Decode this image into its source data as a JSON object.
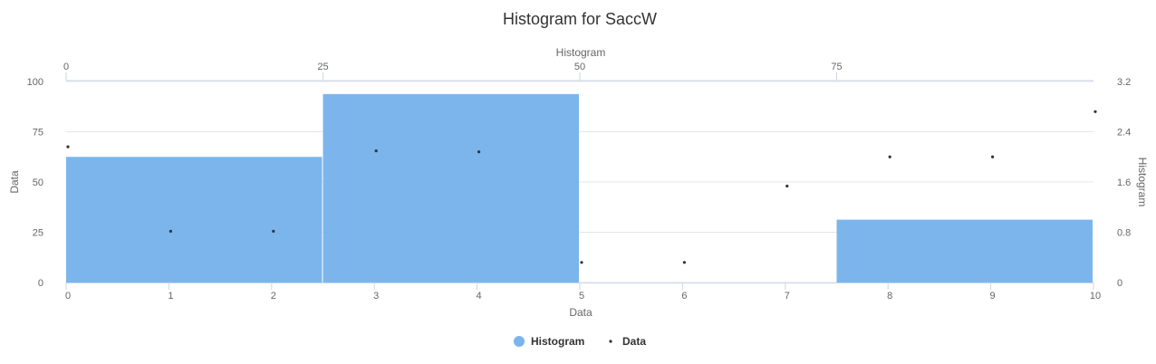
{
  "chart_data": {
    "type": "bar",
    "title": "Histogram for SaccW",
    "legend": {
      "placement": "bottom-center",
      "items": [
        {
          "name": "Histogram",
          "color": "#7cb5ec",
          "symbol": "circle"
        },
        {
          "name": "Data",
          "color": "#333333",
          "symbol": "dot"
        }
      ]
    },
    "axes": {
      "x_bottom": {
        "title": "Data",
        "min": 0,
        "max": 10,
        "ticks": [
          "0",
          "1",
          "2",
          "3",
          "4",
          "5",
          "6",
          "7",
          "8",
          "9",
          "10"
        ]
      },
      "x_top": {
        "title": "Histogram",
        "min": 0,
        "max": 100,
        "ticks": [
          "0",
          "25",
          "50",
          "75"
        ]
      },
      "y_left": {
        "title": "Data",
        "min": 0,
        "max": 100,
        "ticks": [
          "0",
          "25",
          "50",
          "75",
          "100"
        ]
      },
      "y_right": {
        "title": "Histogram",
        "min": 0,
        "max": 3.2,
        "ticks": [
          "0",
          "0.8",
          "1.6",
          "2.4",
          "3.2"
        ]
      }
    },
    "grid": true,
    "series": [
      {
        "name": "Histogram",
        "type": "column",
        "color": "#7cb5ec",
        "bins": [
          {
            "x0": 0,
            "x1": 2.5,
            "count": 2
          },
          {
            "x0": 2.5,
            "x1": 5,
            "count": 3
          },
          {
            "x0": 5,
            "x1": 7.5,
            "count": 0
          },
          {
            "x0": 7.5,
            "x1": 10,
            "count": 1
          }
        ]
      },
      {
        "name": "Data",
        "type": "scatter",
        "color": "#333333",
        "points": [
          {
            "x": 0,
            "y": 67.5
          },
          {
            "x": 1,
            "y": 25.5
          },
          {
            "x": 2,
            "y": 25.5
          },
          {
            "x": 3,
            "y": 65.5
          },
          {
            "x": 4,
            "y": 65
          },
          {
            "x": 5,
            "y": 10
          },
          {
            "x": 6,
            "y": 10
          },
          {
            "x": 7,
            "y": 48
          },
          {
            "x": 8,
            "y": 62.5
          },
          {
            "x": 9,
            "y": 62.5
          },
          {
            "x": 10,
            "y": 85
          }
        ]
      }
    ]
  }
}
